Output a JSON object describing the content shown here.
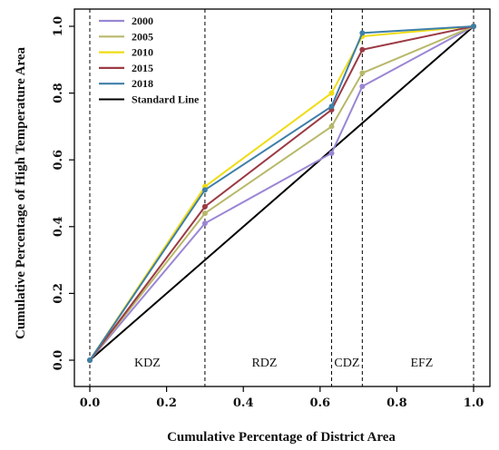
{
  "chart_data": {
    "type": "line",
    "xlabel": "Cumulative Percentage of District Area",
    "ylabel": "Cumulative Percentage of High Temperature Area",
    "xlim": [
      0,
      1
    ],
    "ylim": [
      0,
      1
    ],
    "x": [
      0,
      0.3,
      0.63,
      0.71,
      1.0
    ],
    "xticks": [
      "0.0",
      "0.2",
      "0.4",
      "0.6",
      "0.8",
      "1.0"
    ],
    "yticks": [
      "0.0",
      "0.2",
      "0.4",
      "0.6",
      "0.8",
      "1.0"
    ],
    "grid": false,
    "legend_position": "top-left",
    "series": [
      {
        "name": "2000",
        "color": "#9b86d4",
        "values": [
          0,
          0.41,
          0.62,
          0.82,
          1.0
        ]
      },
      {
        "name": "2005",
        "color": "#b8b86a",
        "values": [
          0,
          0.44,
          0.7,
          0.86,
          1.0
        ]
      },
      {
        "name": "2010",
        "color": "#f0dc14",
        "values": [
          0,
          0.52,
          0.8,
          0.97,
          1.0
        ]
      },
      {
        "name": "2015",
        "color": "#9b3a44",
        "values": [
          0,
          0.46,
          0.75,
          0.93,
          1.0
        ]
      },
      {
        "name": "2018",
        "color": "#3e7fa8",
        "values": [
          0,
          0.51,
          0.76,
          0.98,
          1.0
        ]
      }
    ],
    "standard_line": {
      "name": "Standard Line",
      "color": "#000000",
      "x": [
        0,
        1
      ],
      "values": [
        0,
        1
      ]
    },
    "zone_boundaries": [
      0,
      0.3,
      0.63,
      0.71,
      1.0
    ],
    "zones": [
      {
        "label": "KDZ",
        "x": 0.15
      },
      {
        "label": "RDZ",
        "x": 0.455
      },
      {
        "label": "CDZ",
        "x": 0.67
      },
      {
        "label": "EFZ",
        "x": 0.865
      }
    ]
  }
}
